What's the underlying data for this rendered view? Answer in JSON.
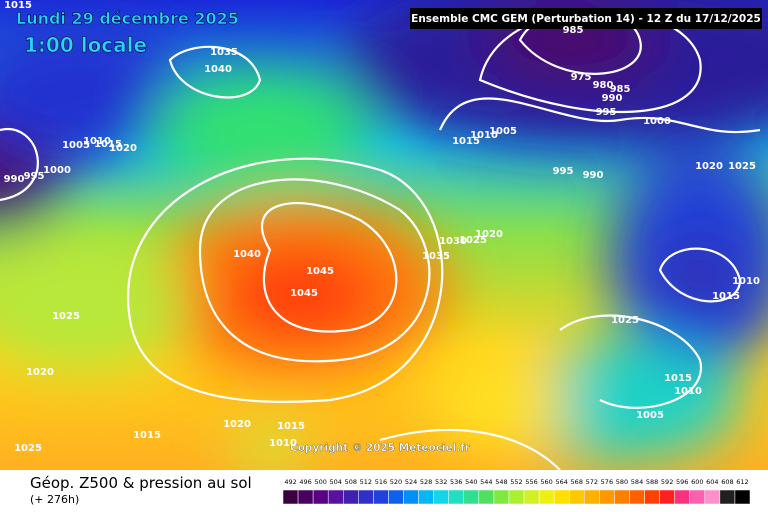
{
  "header": {
    "date": "Lundi 29 décembre 2025",
    "time": "1:00 locale",
    "run": "Ensemble CMC GEM (Perturbation 14)  -  12 Z du 17/12/2025"
  },
  "copyright": "Copyright © 2025 Meteociel.fr",
  "footer": {
    "title": "Géop. Z500 & pression au sol",
    "lead": "(+ 276h)"
  },
  "legend": {
    "labels": [
      "492",
      "496",
      "500",
      "504",
      "508",
      "512",
      "516",
      "520",
      "524",
      "528",
      "532",
      "536",
      "540",
      "544",
      "548",
      "552",
      "556",
      "560",
      "564",
      "568",
      "572",
      "576",
      "580",
      "584",
      "588",
      "592",
      "596",
      "600",
      "604",
      "608",
      "612"
    ]
  },
  "isobars": [
    "1015",
    "1035",
    "1040",
    "985",
    "975",
    "980",
    "985",
    "990",
    "995",
    "1000",
    "1005",
    "1010",
    "1015",
    "1005",
    "1010",
    "1015",
    "1020",
    "1000",
    "995",
    "990",
    "995",
    "990",
    "1020",
    "1025",
    "1030",
    "1025",
    "1020",
    "1035",
    "1040",
    "1045",
    "1045",
    "1010",
    "1015",
    "1025",
    "1025",
    "1020",
    "1015",
    "1010",
    "1005",
    "1020",
    "1015",
    "1015",
    "1010",
    "1025"
  ]
}
